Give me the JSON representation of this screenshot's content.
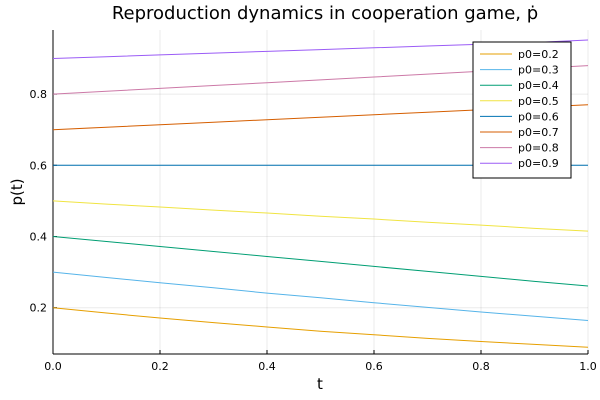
{
  "chart_data": {
    "type": "line",
    "title": "Reproduction dynamics in cooperation game, ṗ",
    "xlabel": "t",
    "ylabel": "p(t)",
    "xlim": [
      0,
      1
    ],
    "ylim": [
      0.07,
      0.98
    ],
    "xticks": [
      0,
      0.2,
      0.4,
      0.6,
      0.8,
      1.0
    ],
    "xtick_labels": [
      "0.0",
      "0.2",
      "0.4",
      "0.6",
      "0.8",
      "1.0"
    ],
    "yticks": [
      0.2,
      0.4,
      0.6,
      0.8
    ],
    "ytick_labels": [
      "0.2",
      "0.4",
      "0.6",
      "0.8"
    ],
    "grid": true,
    "legend_position": "top-right",
    "x": [
      0,
      0.1,
      0.2,
      0.3,
      0.4,
      0.5,
      0.6,
      0.7,
      0.8,
      0.9,
      1.0
    ],
    "series": [
      {
        "name": "p0=0.2",
        "color": "#E69F00",
        "values": [
          0.2,
          0.185,
          0.171,
          0.158,
          0.146,
          0.134,
          0.124,
          0.114,
          0.105,
          0.097,
          0.089
        ]
      },
      {
        "name": "p0=0.3",
        "color": "#56B4E9",
        "values": [
          0.3,
          0.285,
          0.27,
          0.256,
          0.241,
          0.228,
          0.214,
          0.201,
          0.188,
          0.176,
          0.164
        ]
      },
      {
        "name": "p0=0.4",
        "color": "#009E73",
        "values": [
          0.4,
          0.386,
          0.372,
          0.358,
          0.344,
          0.33,
          0.316,
          0.302,
          0.288,
          0.274,
          0.261
        ]
      },
      {
        "name": "p0=0.5",
        "color": "#F0E442",
        "values": [
          0.5,
          0.491,
          0.483,
          0.474,
          0.466,
          0.457,
          0.449,
          0.44,
          0.432,
          0.423,
          0.415
        ]
      },
      {
        "name": "p0=0.6",
        "color": "#0072B2",
        "values": [
          0.6,
          0.6,
          0.6,
          0.6,
          0.6,
          0.6,
          0.6,
          0.6,
          0.6,
          0.6,
          0.6
        ]
      },
      {
        "name": "p0=0.7",
        "color": "#D55E00",
        "values": [
          0.7,
          0.707,
          0.714,
          0.721,
          0.728,
          0.735,
          0.742,
          0.749,
          0.756,
          0.763,
          0.77
        ]
      },
      {
        "name": "p0=0.8",
        "color": "#CC79A7",
        "values": [
          0.8,
          0.808,
          0.816,
          0.824,
          0.832,
          0.84,
          0.848,
          0.856,
          0.864,
          0.872,
          0.88
        ]
      },
      {
        "name": "p0=0.9",
        "color": "#9B5CF6",
        "values": [
          0.9,
          0.905,
          0.91,
          0.915,
          0.92,
          0.925,
          0.93,
          0.935,
          0.94,
          0.945,
          0.952
        ]
      }
    ]
  }
}
